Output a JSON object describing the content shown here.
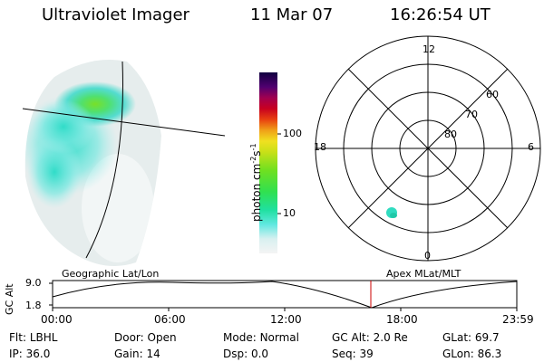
{
  "header": {
    "instrument": "Ultraviolet Imager",
    "date": "11 Mar 07",
    "time": "16:26:54 UT"
  },
  "colorbar": {
    "unit": "photon cm",
    "unit_exp1": "-2",
    "unit_s": "s",
    "unit_exp2": "-1",
    "ticks": [
      "100",
      "10"
    ]
  },
  "polar": {
    "mlt_labels": {
      "top": "12",
      "bottom": "0",
      "left": "18",
      "right": "6"
    },
    "lat_labels": [
      "60",
      "70",
      "80"
    ]
  },
  "orbit": {
    "ylabel": "GC Alt",
    "yticks": [
      "9.0",
      "1.8"
    ],
    "left_caption": "Geographic Lat/Lon",
    "right_caption": "Apex  MLat/MLT",
    "time_ticks": [
      "00:00",
      "06:00",
      "12:00",
      "18:00",
      "23:59"
    ],
    "current_marker_time": "16:26:54"
  },
  "info": [
    {
      "label": "Flt:",
      "value": "LBHL"
    },
    {
      "label": "Door:",
      "value": "Open"
    },
    {
      "label": "Mode:",
      "value": "Normal"
    },
    {
      "label": "GC Alt:",
      "value": "2.0 Re"
    },
    {
      "label": "GLat:",
      "value": "69.7"
    },
    {
      "label": "IP:",
      "value": "36.0"
    },
    {
      "label": "Gain:",
      "value": "14"
    },
    {
      "label": "Dsp:",
      "value": "0.0"
    },
    {
      "label": "Seq:",
      "value": "39"
    },
    {
      "label": "GLon:",
      "value": "86.3"
    }
  ],
  "colors": {
    "marker": "#cc0000",
    "low": "#e8eeee",
    "mid": "#30e0c0",
    "high": "#80e020"
  }
}
